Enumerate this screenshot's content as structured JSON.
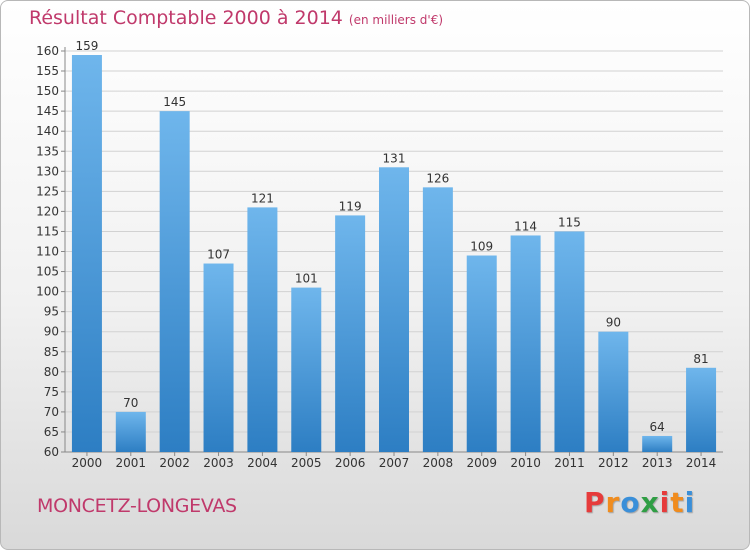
{
  "title": "Résultat Comptable 2000 à 2014",
  "subtitle": "(en milliers d'€)",
  "location": "MONCETZ-LONGEVAS",
  "brand": "Proxiti",
  "colors": {
    "title": "#c0396b",
    "bar_top": "#6fb6ec",
    "bar_bottom": "#2d7ec3",
    "logo": [
      "#e63b3b",
      "#f08c1e",
      "#3a8fd9",
      "#2f9e44",
      "#e63b3b",
      "#f08c1e",
      "#3a8fd9"
    ]
  },
  "chart_data": {
    "type": "bar",
    "title": "Résultat Comptable 2000 à 2014",
    "ylabel": "(en milliers d'€)",
    "xlabel": "",
    "categories": [
      "2000",
      "2001",
      "2002",
      "2003",
      "2004",
      "2005",
      "2006",
      "2007",
      "2008",
      "2009",
      "2010",
      "2011",
      "2012",
      "2013",
      "2014"
    ],
    "values": [
      159,
      70,
      145,
      107,
      121,
      101,
      119,
      131,
      126,
      109,
      114,
      115,
      90,
      64,
      81
    ],
    "ylim": [
      60,
      160
    ],
    "yticks": [
      60,
      65,
      70,
      75,
      80,
      85,
      90,
      95,
      100,
      105,
      110,
      115,
      120,
      125,
      130,
      135,
      140,
      145,
      150,
      155,
      160
    ],
    "grid": true,
    "data_labels": true
  }
}
